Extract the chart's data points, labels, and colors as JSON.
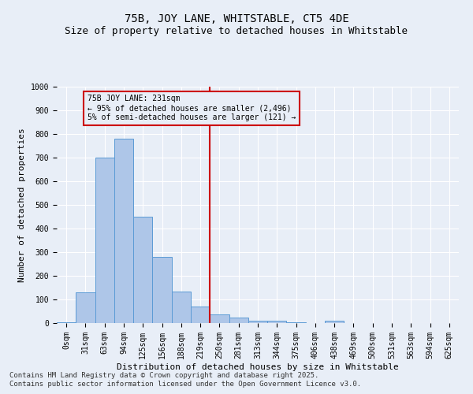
{
  "title": "75B, JOY LANE, WHITSTABLE, CT5 4DE",
  "subtitle": "Size of property relative to detached houses in Whitstable",
  "xlabel": "Distribution of detached houses by size in Whitstable",
  "ylabel": "Number of detached properties",
  "footnote1": "Contains HM Land Registry data © Crown copyright and database right 2025.",
  "footnote2": "Contains public sector information licensed under the Open Government Licence v3.0.",
  "bar_labels": [
    "0sqm",
    "31sqm",
    "63sqm",
    "94sqm",
    "125sqm",
    "156sqm",
    "188sqm",
    "219sqm",
    "250sqm",
    "281sqm",
    "313sqm",
    "344sqm",
    "375sqm",
    "406sqm",
    "438sqm",
    "469sqm",
    "500sqm",
    "531sqm",
    "563sqm",
    "594sqm",
    "625sqm"
  ],
  "bar_values": [
    5,
    130,
    700,
    780,
    450,
    280,
    135,
    70,
    38,
    22,
    10,
    10,
    5,
    0,
    10,
    0,
    0,
    0,
    0,
    0,
    0
  ],
  "bar_color": "#aec6e8",
  "bar_edge_color": "#5b9bd5",
  "vline_x": 7.5,
  "vline_color": "#cc0000",
  "annotation_text": "75B JOY LANE: 231sqm\n← 95% of detached houses are smaller (2,496)\n5% of semi-detached houses are larger (121) →",
  "annotation_box_color": "#cc0000",
  "ylim": [
    0,
    1000
  ],
  "yticks": [
    0,
    100,
    200,
    300,
    400,
    500,
    600,
    700,
    800,
    900,
    1000
  ],
  "background_color": "#e8eef7",
  "grid_color": "#ffffff",
  "title_fontsize": 10,
  "subtitle_fontsize": 9,
  "axis_fontsize": 8,
  "tick_fontsize": 7,
  "annotation_fontsize": 7,
  "footnote_fontsize": 6.5
}
